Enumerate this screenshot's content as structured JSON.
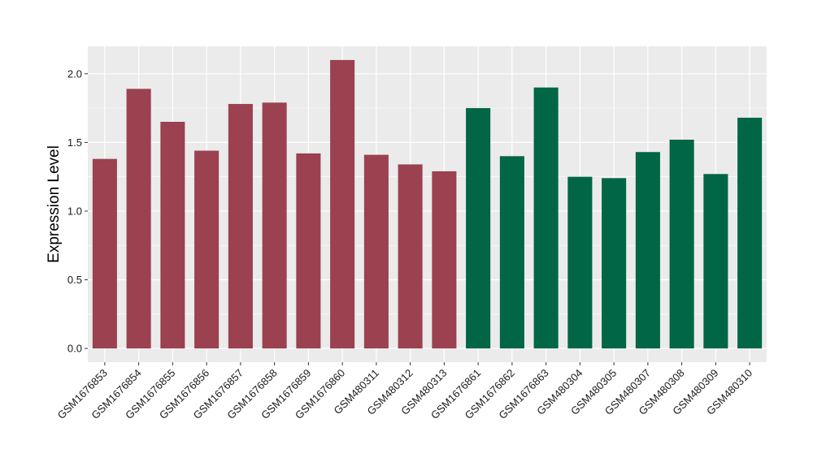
{
  "chart_data": {
    "type": "bar",
    "ylabel": "Expression Level",
    "xlabel": "",
    "title": "",
    "ylim": [
      -0.1,
      2.2
    ],
    "yticks": [
      0.0,
      0.5,
      1.0,
      1.5,
      2.0
    ],
    "ytick_labels": [
      "0.0",
      "0.5",
      "1.0",
      "1.5",
      "2.0"
    ],
    "grid": true,
    "colors": {
      "panel": "#ebebeb",
      "grid": "#ffffff",
      "group1": "#9b4150",
      "group2": "#006646"
    },
    "categories": [
      "GSM1676853",
      "GSM1676854",
      "GSM1676855",
      "GSM1676856",
      "GSM1676857",
      "GSM1676858",
      "GSM1676859",
      "GSM1676860",
      "GSM480311",
      "GSM480312",
      "GSM480313",
      "GSM1676861",
      "GSM1676862",
      "GSM1676863",
      "GSM480304",
      "GSM480305",
      "GSM480307",
      "GSM480308",
      "GSM480309",
      "GSM480310"
    ],
    "values": [
      1.38,
      1.89,
      1.65,
      1.44,
      1.78,
      1.79,
      1.42,
      2.1,
      1.41,
      1.34,
      1.29,
      1.75,
      1.4,
      1.9,
      1.25,
      1.24,
      1.43,
      1.52,
      1.27,
      1.68
    ],
    "bar_groups": [
      1,
      1,
      1,
      1,
      1,
      1,
      1,
      1,
      1,
      1,
      1,
      2,
      2,
      2,
      2,
      2,
      2,
      2,
      2,
      2
    ]
  }
}
